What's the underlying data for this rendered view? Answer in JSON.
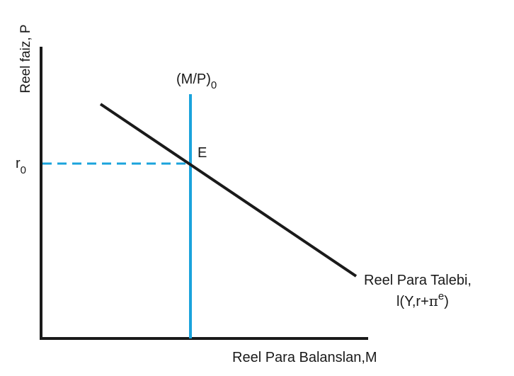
{
  "diagram": {
    "y_axis_label": "Reel faiz, P",
    "x_axis_label": "Reel Para Balanslan,M",
    "r0_label": {
      "base": "r",
      "sub": "0"
    },
    "supply_label": {
      "base": "(M/P)",
      "sub": "0"
    },
    "equilibrium_label": "E",
    "demand_label_line1": "Reel Para Talebi,",
    "demand_label_line2": {
      "prefix": "l(Y,r+",
      "pi": "π",
      "sup": "e",
      "suffix": ")"
    },
    "colors": {
      "axis": "#1a1a1a",
      "demand_curve": "#1a1a1a",
      "supply_line": "#1ba3dc",
      "guide_dashed": "#1ba3dc"
    }
  }
}
